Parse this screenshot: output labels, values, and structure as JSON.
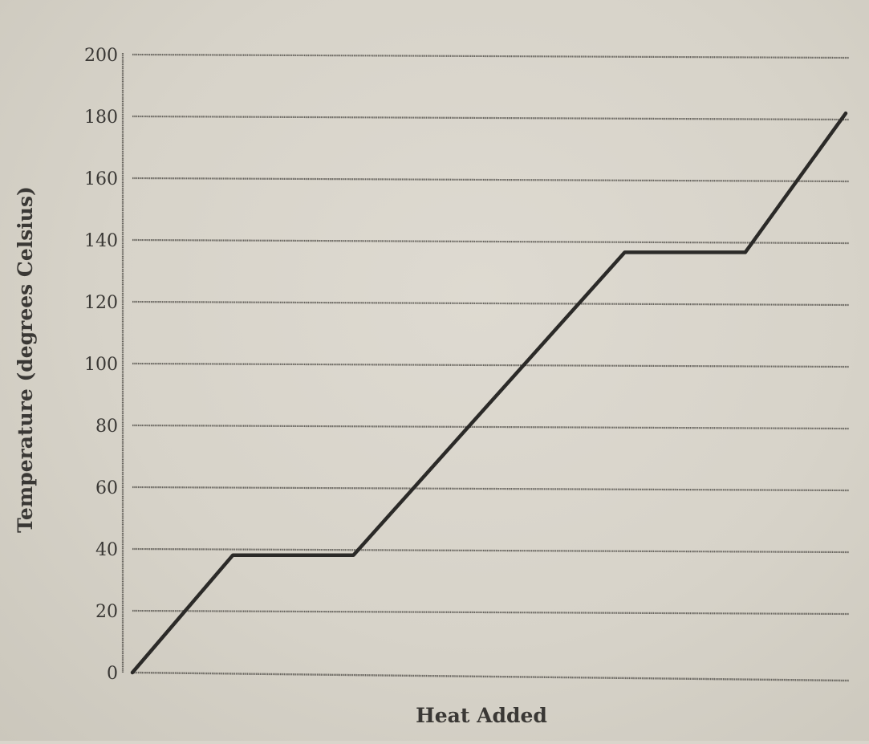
{
  "chart_data": {
    "type": "line",
    "title": "",
    "xlabel": "Heat Added",
    "ylabel": "Temperature (degrees Celsius)",
    "ylim": [
      0,
      200
    ],
    "yticks": [
      "0",
      "20",
      "40",
      "60",
      "80",
      "100",
      "120",
      "140",
      "160",
      "180",
      "200"
    ],
    "grid": true,
    "legend": "none",
    "line_color": "#2b2a28",
    "grid_color": "#66635d",
    "series": [
      {
        "x": [
          0,
          1,
          2.2,
          4.9,
          6.1,
          7.1
        ],
        "y": [
          0,
          38,
          38,
          136,
          136,
          181
        ]
      }
    ]
  }
}
